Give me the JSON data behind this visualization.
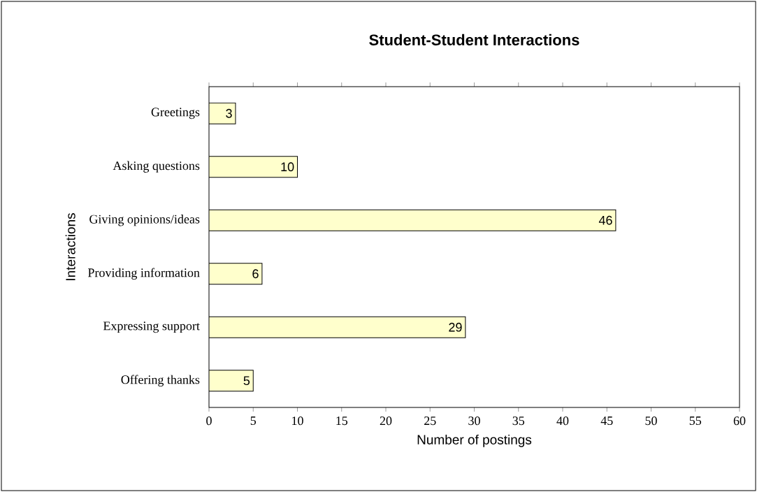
{
  "chart_data": {
    "type": "bar",
    "orientation": "horizontal",
    "title": "Student-Student Interactions",
    "xlabel": "Number of postings",
    "ylabel": "Interactions",
    "categories": [
      "Greetings",
      "Asking questions",
      "Giving opinions/ideas",
      "Providing information",
      "Expressing support",
      "Offering thanks"
    ],
    "values": [
      3,
      10,
      46,
      6,
      29,
      5
    ],
    "color": "#ffffcc",
    "data_labels": true,
    "xlim": [
      0,
      60
    ],
    "xticks": [
      0,
      5,
      10,
      15,
      20,
      25,
      30,
      35,
      40,
      45,
      50,
      55,
      60
    ]
  }
}
